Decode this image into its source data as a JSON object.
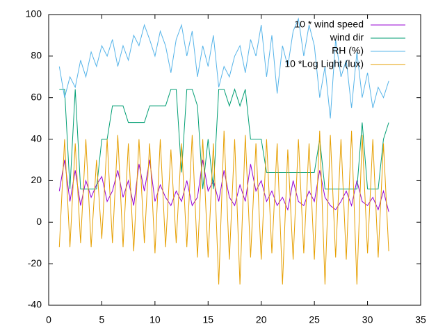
{
  "chart_data": {
    "type": "line",
    "x": [
      1,
      1.5,
      2,
      2.5,
      3,
      3.5,
      4,
      4.5,
      5,
      5.5,
      6,
      6.5,
      7,
      7.5,
      8,
      8.5,
      9,
      9.5,
      10,
      10.5,
      11,
      11.5,
      12,
      12.5,
      13,
      13.5,
      14,
      14.5,
      15,
      15.5,
      16,
      16.5,
      17,
      17.5,
      18,
      18.5,
      19,
      19.5,
      20,
      20.5,
      21,
      21.5,
      22,
      22.5,
      23,
      23.5,
      24,
      24.5,
      25,
      25.5,
      26,
      26.5,
      27,
      27.5,
      28,
      28.5,
      29,
      29.5,
      30,
      30.5,
      31,
      31.5,
      32
    ],
    "series": [
      {
        "name": "10 * wind speed",
        "color": "#9400d3",
        "values": [
          15,
          30,
          10,
          25,
          8,
          20,
          12,
          18,
          22,
          10,
          15,
          25,
          12,
          20,
          8,
          28,
          15,
          30,
          10,
          18,
          12,
          8,
          15,
          10,
          20,
          8,
          12,
          30,
          15,
          20,
          10,
          25,
          12,
          8,
          18,
          10,
          28,
          15,
          20,
          10,
          15,
          8,
          12,
          6,
          20,
          10,
          8,
          15,
          10,
          25,
          12,
          8,
          6,
          10,
          15,
          8,
          20,
          10,
          8,
          12,
          6,
          15,
          5
        ]
      },
      {
        "name": "wind dir",
        "color": "#009e73",
        "values": [
          64,
          64,
          16,
          64,
          16,
          16,
          16,
          16,
          40,
          40,
          56,
          56,
          56,
          48,
          48,
          48,
          48,
          56,
          56,
          56,
          56,
          64,
          64,
          24,
          64,
          64,
          56,
          16,
          40,
          16,
          64,
          64,
          56,
          64,
          56,
          64,
          40,
          40,
          40,
          24,
          24,
          24,
          24,
          24,
          24,
          24,
          24,
          24,
          24,
          40,
          16,
          16,
          16,
          16,
          16,
          16,
          16,
          48,
          16,
          16,
          16,
          40,
          48
        ]
      },
      {
        "name": "RH (%)",
        "color": "#56b4e9",
        "values": [
          75,
          60,
          70,
          65,
          78,
          70,
          82,
          75,
          85,
          80,
          88,
          75,
          85,
          78,
          90,
          85,
          95,
          88,
          80,
          92,
          85,
          72,
          88,
          95,
          80,
          92,
          70,
          85,
          75,
          90,
          65,
          75,
          70,
          80,
          85,
          72,
          88,
          80,
          95,
          70,
          90,
          62,
          85,
          75,
          92,
          98,
          80,
          95,
          85,
          60,
          75,
          50,
          88,
          70,
          78,
          55,
          82,
          60,
          72,
          55,
          65,
          60,
          68
        ]
      },
      {
        "name": "10 *Log Light (lux)",
        "color": "#e69f00",
        "values": [
          -12,
          40,
          -12,
          38,
          -10,
          40,
          -12,
          30,
          -8,
          40,
          -10,
          42,
          -12,
          38,
          -14,
          40,
          -10,
          38,
          -15,
          40,
          -12,
          35,
          -10,
          38,
          -12,
          42,
          -17,
          40,
          -17,
          38,
          -30,
          44,
          -18,
          40,
          -30,
          42,
          -17,
          38,
          -18,
          40,
          -15,
          38,
          -30,
          35,
          -18,
          40,
          -15,
          38,
          -18,
          44,
          -30,
          42,
          -17,
          40,
          -18,
          44,
          -30,
          42,
          -15,
          40,
          -17,
          38,
          -14
        ]
      }
    ],
    "xlim": [
      0,
      35
    ],
    "xticks": [
      0,
      5,
      10,
      15,
      20,
      25,
      30,
      35
    ],
    "ylim": [
      -40,
      100
    ],
    "yticks": [
      -40,
      -20,
      0,
      20,
      40,
      60,
      80,
      100
    ],
    "legend": "top-right"
  }
}
